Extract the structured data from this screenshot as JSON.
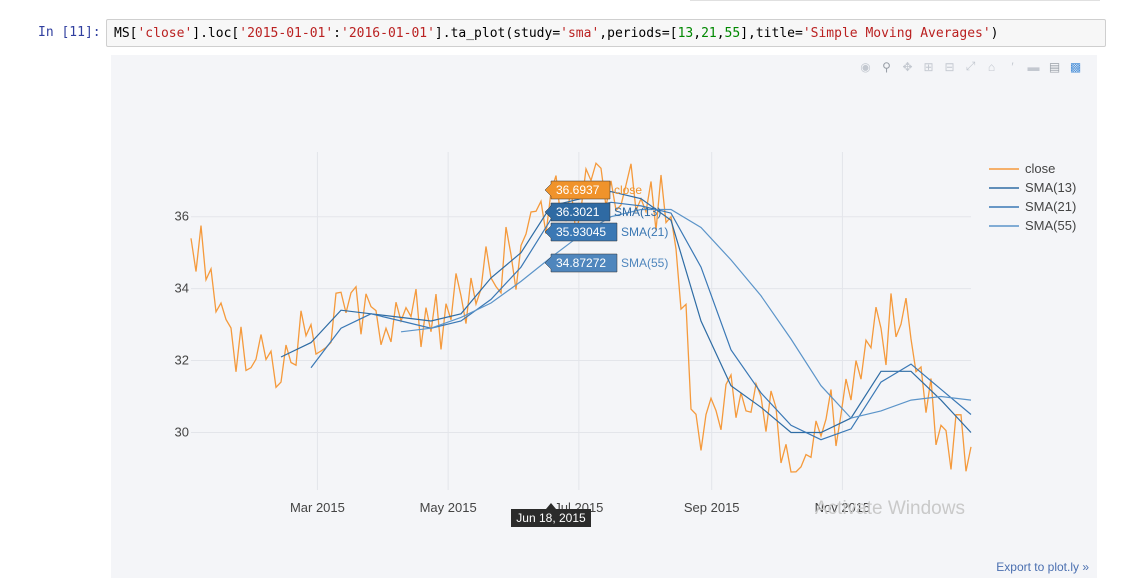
{
  "cell": {
    "prompt": "In [11]:",
    "code_parts": [
      {
        "t": "MS[",
        "c": ""
      },
      {
        "t": "'close'",
        "c": "str"
      },
      {
        "t": "].loc[",
        "c": ""
      },
      {
        "t": "'2015-01-01'",
        "c": "str"
      },
      {
        "t": ":",
        "c": ""
      },
      {
        "t": "'2016-01-01'",
        "c": "str"
      },
      {
        "t": "].ta_plot(study=",
        "c": ""
      },
      {
        "t": "'sma'",
        "c": "str"
      },
      {
        "t": ",periods=[",
        "c": ""
      },
      {
        "t": "13",
        "c": "num"
      },
      {
        "t": ",",
        "c": ""
      },
      {
        "t": "21",
        "c": "num"
      },
      {
        "t": ",",
        "c": ""
      },
      {
        "t": "55",
        "c": "num"
      },
      {
        "t": "],title=",
        "c": ""
      },
      {
        "t": "'Simple Moving Averages'",
        "c": "str"
      },
      {
        "t": ")",
        "c": ""
      }
    ]
  },
  "modebar": {
    "icons": [
      "camera-icon",
      "zoom-icon",
      "pan-icon",
      "zoom-in-icon",
      "zoom-out-icon",
      "autoscale-icon",
      "reset-axes-icon",
      "spike-lines-icon",
      "hover-closest-icon",
      "hover-compare-icon",
      "plotly-logo-icon"
    ]
  },
  "export_link": "Export to plot.ly »",
  "watermark": "Activate Windows",
  "colors": {
    "close": "#f59a3c",
    "sma13": "#2e6ca4",
    "sma21": "#3a78b5",
    "sma55": "#5b94c9",
    "plot_bg": "#f4f5f8"
  },
  "hover": {
    "date": "Jun 18, 2015",
    "labels": [
      {
        "value": "36.6937",
        "name": "close",
        "color": "#f0932b"
      },
      {
        "value": "36.3021",
        "name": "SMA(13)",
        "color": "#2f6aa3"
      },
      {
        "value": "35.93045",
        "name": "SMA(21)",
        "color": "#3b78b4"
      },
      {
        "value": "34.87272",
        "name": "SMA(55)",
        "color": "#4f86bd"
      }
    ]
  },
  "chart_data": {
    "type": "line",
    "title": "",
    "xlabel": "",
    "ylabel": "",
    "x_ticks": [
      "Mar 2015",
      "May 2015",
      "Jul 2015",
      "Sep 2015",
      "Nov 2015"
    ],
    "y_ticks": [
      "30",
      "32",
      "34",
      "36"
    ],
    "ylim": [
      28.4,
      37.8
    ],
    "grid": true,
    "legend_position": "top-right",
    "x_dates": [
      "2015-01-01",
      "2015-01-15",
      "2015-01-29",
      "2015-02-12",
      "2015-02-26",
      "2015-03-12",
      "2015-03-26",
      "2015-04-09",
      "2015-04-23",
      "2015-05-07",
      "2015-05-21",
      "2015-06-04",
      "2015-06-18",
      "2015-07-02",
      "2015-07-16",
      "2015-07-30",
      "2015-08-13",
      "2015-08-27",
      "2015-09-10",
      "2015-09-24",
      "2015-10-08",
      "2015-10-22",
      "2015-11-05",
      "2015-11-19",
      "2015-12-03",
      "2015-12-17",
      "2015-12-31"
    ],
    "series": [
      {
        "name": "close",
        "values": [
          35.4,
          33.6,
          31.8,
          31.4,
          33.0,
          33.9,
          33.5,
          33.1,
          32.8,
          33.8,
          34.3,
          35.2,
          36.69,
          36.2,
          37.0,
          36.5,
          36.0,
          29.5,
          31.6,
          31.0,
          28.9,
          29.9,
          30.9,
          32.9,
          32.6,
          30.2,
          29.6
        ]
      },
      {
        "name": "SMA(13)",
        "values": [
          null,
          null,
          null,
          32.1,
          32.5,
          33.4,
          33.3,
          33.2,
          33.1,
          33.3,
          34.3,
          35.0,
          36.3,
          36.5,
          36.7,
          36.5,
          35.9,
          33.1,
          31.3,
          30.7,
          30.0,
          30.0,
          30.4,
          31.7,
          31.7,
          30.9,
          30.0
        ]
      },
      {
        "name": "SMA(21)",
        "values": [
          null,
          null,
          null,
          null,
          31.8,
          32.9,
          33.3,
          33.1,
          32.9,
          33.1,
          33.7,
          34.6,
          35.93,
          36.2,
          36.4,
          36.3,
          36.1,
          34.6,
          32.3,
          31.1,
          30.2,
          29.8,
          30.1,
          31.4,
          31.9,
          31.2,
          30.5
        ]
      },
      {
        "name": "SMA(55)",
        "values": [
          null,
          null,
          null,
          null,
          null,
          null,
          null,
          32.8,
          32.9,
          33.2,
          33.6,
          34.2,
          34.87,
          35.5,
          36.0,
          36.2,
          36.2,
          35.7,
          34.8,
          33.8,
          32.6,
          31.3,
          30.4,
          30.6,
          30.9,
          31.0,
          30.9
        ]
      }
    ]
  }
}
